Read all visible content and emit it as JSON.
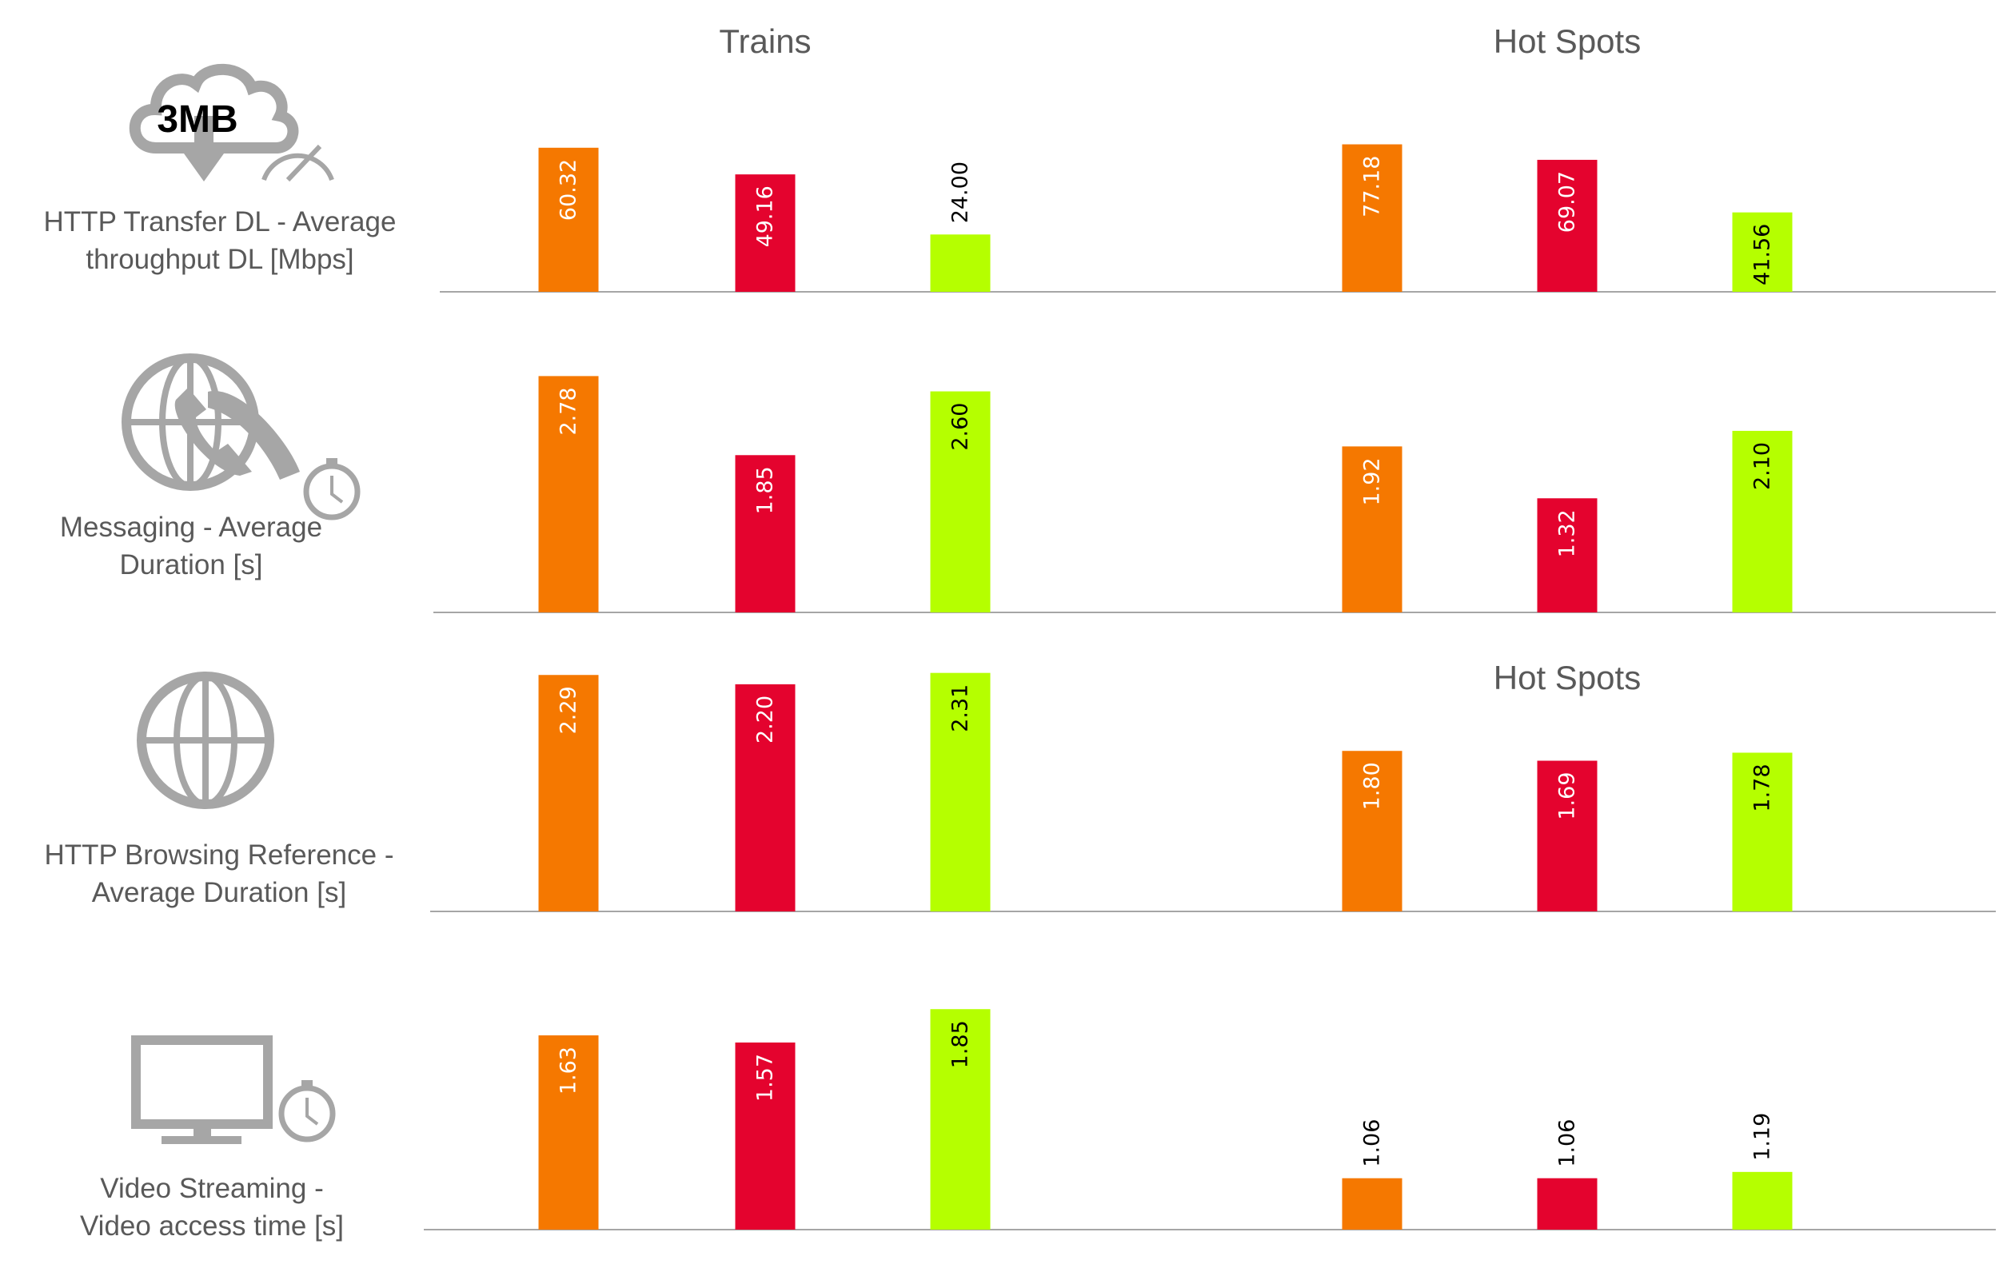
{
  "colors": {
    "series": [
      "#f57800",
      "#e4032e",
      "#b5ff00"
    ],
    "text": "#595959",
    "icon": "#a6a6a6",
    "axis": "#a6a6a6"
  },
  "chart_data": [
    {
      "type": "bar",
      "row_label": [
        "HTTP Transfer DL - Average",
        "throughput DL [Mbps]"
      ],
      "icon": "cloud-download-speedometer-icon",
      "icon_text": "3MB",
      "groups": [
        {
          "title": "Trains",
          "ylim": [
            0,
            80
          ],
          "values": [
            60.32,
            49.16,
            24.0
          ],
          "labels": [
            "60.32",
            "49.16",
            "24.00"
          ]
        },
        {
          "title": "Hot Spots",
          "ylim": [
            0,
            100
          ],
          "values": [
            77.18,
            69.07,
            41.56
          ],
          "labels": [
            "77.18",
            "69.07",
            "41.56"
          ]
        }
      ]
    },
    {
      "type": "bar",
      "row_label": [
        "Messaging - Average",
        "Duration [s]"
      ],
      "icon": "globe-phone-stopwatch-icon",
      "groups": [
        {
          "title": "",
          "ylim": [
            0,
            3.0
          ],
          "values": [
            2.78,
            1.85,
            2.6
          ],
          "labels": [
            "2.78",
            "1.85",
            "2.60"
          ]
        },
        {
          "title": "",
          "ylim": [
            0,
            2.95
          ],
          "values": [
            1.92,
            1.32,
            2.1
          ],
          "labels": [
            "1.92",
            "1.32",
            "2.10"
          ]
        }
      ]
    },
    {
      "type": "bar",
      "row_label": [
        "HTTP Browsing Reference -",
        "Average Duration [s]"
      ],
      "icon": "globe-icon",
      "groups": [
        {
          "title": "",
          "ylim": [
            0,
            2.47
          ],
          "values": [
            2.29,
            2.2,
            2.31
          ],
          "labels": [
            "2.29",
            "2.20",
            "2.31"
          ]
        },
        {
          "title": "Hot Spots",
          "ylim": [
            0,
            2.86
          ],
          "values": [
            1.8,
            1.69,
            1.78
          ],
          "labels": [
            "1.80",
            "1.69",
            "1.78"
          ]
        }
      ]
    },
    {
      "type": "bar",
      "row_label": [
        "Video Streaming -",
        "Video access time [s]"
      ],
      "icon": "monitor-stopwatch-icon",
      "groups": [
        {
          "title": "",
          "ylim": [
            0,
            2.14
          ],
          "values": [
            1.63,
            1.57,
            1.85
          ],
          "labels": [
            "1.63",
            "1.57",
            "1.85"
          ]
        },
        {
          "title": "",
          "ylim": [
            0,
            5.26
          ],
          "values": [
            1.06,
            1.06,
            1.19
          ],
          "labels": [
            "1.06",
            "1.06",
            "1.19"
          ]
        }
      ]
    }
  ]
}
